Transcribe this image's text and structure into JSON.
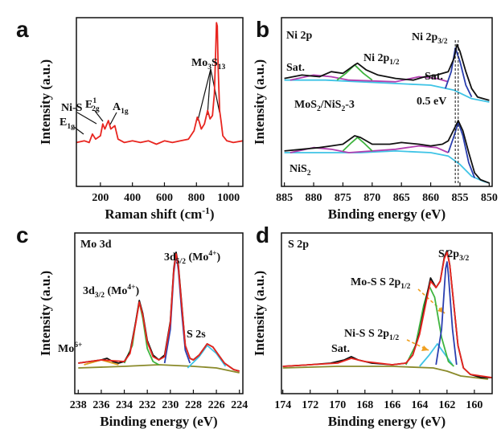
{
  "chart_data": [
    {
      "type": "line",
      "label": "a",
      "ylabel": "Intensity (a.u.)",
      "xlabel": [
        "Raman shift (cm",
        {
          "sup": "-1"
        },
        ")"
      ],
      "xlim": [
        50,
        1090
      ],
      "xticks": [
        200,
        400,
        600,
        800,
        1000
      ],
      "ylim": [
        0,
        100
      ],
      "annotations": [
        [
          "E",
          {
            "sub": "1g"
          }
        ],
        "Ni-S",
        [
          "E",
          {
            "sup": "1"
          },
          {
            "sub": "2g"
          }
        ],
        [
          "A",
          {
            "sub": "1g"
          }
        ],
        [
          "Mo",
          {
            "sub": "3"
          },
          "S",
          {
            "sub": "13"
          }
        ]
      ],
      "series": [
        {
          "color": "#e8251f",
          "x": [
            50,
            100,
            130,
            150,
            170,
            200,
            215,
            228,
            250,
            265,
            290,
            310,
            350,
            400,
            450,
            500,
            550,
            600,
            650,
            700,
            750,
            785,
            805,
            815,
            830,
            850,
            870,
            885,
            900,
            912,
            920,
            925,
            930,
            936,
            945,
            955,
            965,
            990,
            1030,
            1090
          ],
          "values": [
            26,
            27,
            26,
            31,
            28,
            30,
            37,
            34,
            39,
            34,
            36,
            28,
            26,
            27,
            26,
            27,
            25,
            27,
            26,
            27,
            28,
            33,
            41,
            39,
            34,
            37,
            45,
            40,
            42,
            55,
            80,
            97,
            95,
            70,
            45,
            38,
            30,
            27,
            26,
            27
          ]
        }
      ]
    },
    {
      "type": "line",
      "label": "b",
      "ylabel": "Intensity (a.u.)",
      "xlabel": "Binding energy (eV)",
      "xlim": [
        885.5,
        849.5
      ],
      "xticks": [
        885,
        880,
        875,
        870,
        865,
        860,
        855,
        850
      ],
      "ylim": [
        0,
        100
      ],
      "markers": [
        855.8,
        855.3
      ],
      "annotations": [
        "Ni 2p",
        "Sat.",
        [
          "Ni 2p",
          {
            "sub": "1/2"
          }
        ],
        "Sat.",
        [
          "Ni 2p",
          {
            "sub": "3/2"
          }
        ],
        [
          "MoS",
          {
            "sub": "2"
          },
          "/NiS",
          {
            "sub": "2"
          },
          "-3"
        ],
        "0.5 eV",
        [
          "NiS",
          {
            "sub": "2"
          }
        ]
      ],
      "series": [
        {
          "color": "#3fc4e6",
          "x": [
            885,
            878,
            872,
            866,
            860,
            856,
            853,
            850
          ],
          "values": [
            63,
            63,
            62,
            61,
            60,
            57,
            52,
            50
          ]
        },
        {
          "color": "#b23fb0",
          "x": [
            884,
            880,
            877,
            874,
            866,
            862,
            859,
            857
          ],
          "values": [
            63,
            66,
            65,
            63,
            62,
            65,
            64,
            62
          ]
        },
        {
          "color": "#3fb43f",
          "x": [
            876,
            874.5,
            873,
            871.5,
            870
          ],
          "values": [
            63,
            67,
            72,
            67,
            63
          ]
        },
        {
          "color": "#2a3fb0",
          "x": [
            857.5,
            856.5,
            855.8,
            855,
            854,
            853
          ],
          "values": [
            58,
            68,
            82,
            74,
            60,
            53
          ]
        },
        {
          "color": "#111111",
          "x": [
            885,
            882,
            879,
            877,
            875,
            873,
            872.5,
            871,
            869,
            866,
            863,
            861,
            859,
            857,
            856,
            855.5,
            855,
            854,
            853,
            852,
            850
          ],
          "values": [
            64,
            66,
            65,
            68,
            67,
            72,
            73,
            69,
            66,
            64,
            63,
            65,
            66,
            68,
            76,
            84,
            80,
            68,
            58,
            53,
            51
          ]
        },
        {
          "color": "#3fc4e6",
          "x": [
            885,
            878,
            872,
            866,
            860,
            857,
            855,
            853,
            851,
            850
          ],
          "values": [
            20,
            20,
            20,
            21,
            20,
            18,
            13,
            6,
            3,
            2
          ]
        },
        {
          "color": "#b23fb0",
          "x": [
            884,
            880,
            877,
            874,
            866,
            862,
            859,
            857
          ],
          "values": [
            20,
            23,
            22,
            20,
            22,
            24,
            23,
            20
          ]
        },
        {
          "color": "#3fb43f",
          "x": [
            875,
            873.5,
            872.5,
            871.5,
            870
          ],
          "values": [
            21,
            26,
            29,
            26,
            21
          ]
        },
        {
          "color": "#2a3fb0",
          "x": [
            857,
            856,
            855.3,
            854.5,
            853.5,
            852.5
          ],
          "values": [
            20,
            30,
            38,
            30,
            14,
            5
          ]
        },
        {
          "color": "#111111",
          "x": [
            885,
            882,
            879,
            877,
            875,
            873,
            872,
            870,
            867,
            865,
            862,
            860,
            858,
            857,
            856,
            855.3,
            854.5,
            853.5,
            852.5,
            851.5,
            850
          ],
          "values": [
            21,
            22,
            23,
            24,
            25,
            30,
            29,
            25,
            25,
            26,
            25,
            24,
            25,
            27,
            34,
            39,
            33,
            20,
            8,
            4,
            2
          ]
        }
      ]
    },
    {
      "type": "line",
      "label": "c",
      "ylabel": "Intensity (a.u.)",
      "xlabel": "Binding energy (eV)",
      "xlim": [
        238.3,
        223.7
      ],
      "xticks": [
        238,
        236,
        234,
        232,
        230,
        228,
        226,
        224
      ],
      "ylim": [
        0,
        100
      ],
      "annotations": [
        "Mo 3d",
        [
          "3d",
          {
            "sub": "5/2"
          },
          " (Mo",
          {
            "sup": "4+"
          },
          ")"
        ],
        [
          "3d",
          {
            "sub": "3/2"
          },
          " (Mo",
          {
            "sup": "4+"
          },
          ")"
        ],
        "S  2s",
        [
          "Mo",
          {
            "sup": "6+"
          }
        ]
      ],
      "series": [
        {
          "color": "#8a8a2a",
          "x": [
            238,
            234,
            231,
            228,
            226,
            224
          ],
          "values": [
            16,
            17,
            18,
            17,
            16,
            13
          ]
        },
        {
          "color": "#e0a020",
          "x": [
            237.5,
            236,
            234.5
          ],
          "values": [
            18,
            21,
            18
          ]
        },
        {
          "color": "#3fc4e6",
          "x": [
            228.5,
            227.5,
            226.8,
            226,
            225.2
          ],
          "values": [
            16,
            23,
            30,
            25,
            17
          ]
        },
        {
          "color": "#3fb43f",
          "x": [
            234,
            233.3,
            233,
            232.7,
            232.4,
            232,
            231.5,
            231
          ],
          "values": [
            19,
            30,
            45,
            57,
            47,
            28,
            20,
            18
          ]
        },
        {
          "color": "#2a3fb0",
          "x": [
            230.5,
            230,
            229.7,
            229.5,
            229.3,
            229,
            228.7,
            228.3
          ],
          "values": [
            19,
            40,
            75,
            87,
            77,
            50,
            27,
            19
          ]
        },
        {
          "color": "#111111",
          "x": [
            238,
            237,
            236,
            235.5,
            235,
            234.5,
            234,
            233.5,
            233,
            232.7,
            232.4,
            232,
            231.5,
            231,
            230.5,
            230,
            229.7,
            229.5,
            229.3,
            229,
            228.7,
            228.3,
            228,
            227.5,
            227,
            226.8,
            226.3,
            225.8,
            225.3,
            224.5,
            224
          ],
          "values": [
            19,
            20,
            21,
            22,
            20,
            19,
            20,
            26,
            45,
            58,
            50,
            33,
            24,
            21,
            24,
            45,
            78,
            88,
            80,
            55,
            30,
            22,
            21,
            24,
            29,
            31,
            29,
            24,
            19,
            15,
            14
          ]
        },
        {
          "color": "#e8251f",
          "x": [
            238,
            236,
            234,
            233.5,
            233,
            232.7,
            232.4,
            232,
            231.5,
            231,
            230.5,
            230,
            229.7,
            229.5,
            229.3,
            229,
            228.7,
            228.3,
            228,
            227.5,
            227,
            226.8,
            226.3,
            225.8,
            225.3,
            224.5,
            224
          ],
          "values": [
            19,
            21,
            20,
            25,
            44,
            57,
            49,
            32,
            23,
            21,
            23,
            44,
            77,
            87,
            79,
            54,
            30,
            22,
            21,
            24,
            29,
            31,
            29,
            24,
            19,
            15,
            14
          ]
        }
      ]
    },
    {
      "type": "line",
      "label": "d",
      "ylabel": "Intensity (a.u.)",
      "xlabel": "Binding energy (eV)",
      "xlim": [
        174.1,
        158.7
      ],
      "xticks": [
        174,
        172,
        170,
        168,
        166,
        164,
        162,
        160
      ],
      "ylim": [
        0,
        100
      ],
      "annotations": [
        "S 2p",
        [
          "S 2p",
          {
            "sub": "3/2"
          }
        ],
        [
          "Mo-S S 2p",
          {
            "sub": "1/2"
          }
        ],
        [
          "Ni-S S 2p",
          {
            "sub": "1/2"
          }
        ],
        "Sat."
      ],
      "series": [
        {
          "color": "#8a8a2a",
          "x": [
            174,
            170,
            166,
            163,
            162,
            161,
            159
          ],
          "values": [
            16,
            17,
            17,
            16,
            14,
            11,
            9
          ]
        },
        {
          "color": "#3fc4e6",
          "x": [
            164,
            163.3,
            162.7,
            162.2,
            161.6
          ],
          "values": [
            17,
            24,
            31,
            25,
            18
          ]
        },
        {
          "color": "#3fb43f",
          "x": [
            165,
            164.3,
            163.7,
            163.3,
            162.9,
            162.4,
            161.9,
            161.5
          ],
          "values": [
            18,
            30,
            55,
            67,
            60,
            35,
            20,
            17
          ]
        },
        {
          "color": "#2a3fb0",
          "x": [
            162.8,
            162.4,
            162.1,
            162,
            161.9,
            161.6,
            161.3
          ],
          "values": [
            18,
            40,
            78,
            82,
            74,
            40,
            18
          ]
        },
        {
          "color": "#111111",
          "x": [
            174,
            172,
            170.5,
            169.5,
            169,
            168.5,
            167.5,
            166,
            165,
            164.5,
            164,
            163.5,
            163.2,
            162.8,
            162.5,
            162.2,
            162,
            161.8,
            161.5,
            161.2,
            160.8,
            160.3,
            159.5,
            158.7
          ],
          "values": [
            17,
            18,
            19,
            21,
            23,
            21,
            19,
            18,
            19,
            24,
            38,
            60,
            72,
            66,
            70,
            85,
            89,
            80,
            55,
            30,
            16,
            12,
            10,
            10
          ]
        },
        {
          "color": "#e8251f",
          "x": [
            174,
            170,
            169,
            168,
            166,
            165,
            164.5,
            164,
            163.5,
            163.2,
            162.8,
            162.5,
            162.2,
            162,
            161.8,
            161.5,
            161.2,
            160.8,
            160.3,
            158.7
          ],
          "values": [
            17,
            19,
            22,
            20,
            18,
            19,
            24,
            37,
            58,
            70,
            66,
            70,
            84,
            88,
            80,
            55,
            30,
            16,
            12,
            10
          ]
        }
      ]
    }
  ]
}
